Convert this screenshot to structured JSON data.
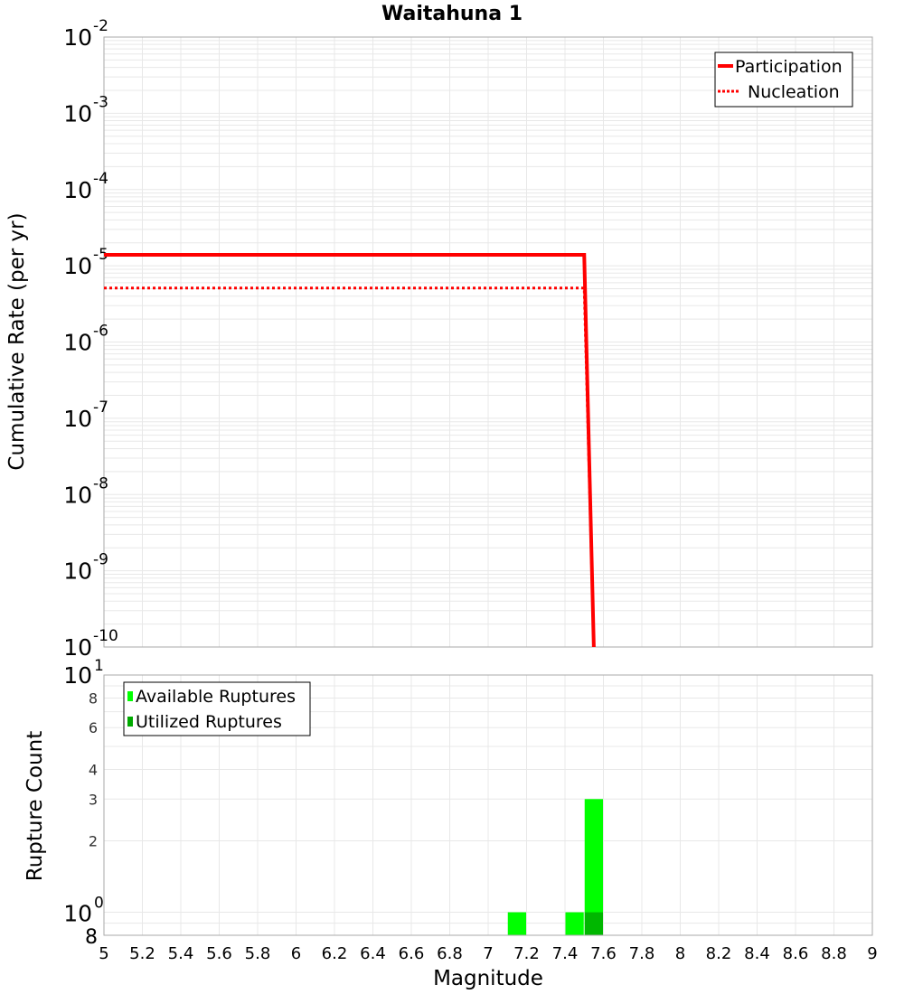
{
  "chart_data": [
    {
      "type": "line",
      "title": "Waitahuna 1",
      "xlabel": "Magnitude",
      "ylabel": "Cumulative Rate (per yr)",
      "yscale": "log",
      "xlim": [
        5,
        9
      ],
      "ylim": [
        1e-10,
        0.01
      ],
      "grid": true,
      "legend_position": "upper right",
      "y_tick_labels": [
        "10-2",
        "10-3",
        "10-4",
        "10-5",
        "10-6",
        "10-7",
        "10-8",
        "10-9",
        "10-10"
      ],
      "series": [
        {
          "name": "Participation",
          "style": "solid",
          "color": "#ff0000",
          "x": [
            5.0,
            7.5,
            7.55
          ],
          "y": [
            1.39e-05,
            1.39e-05,
            1e-10
          ]
        },
        {
          "name": "Nucleation",
          "style": "dotted",
          "color": "#ff0000",
          "x": [
            5.0,
            7.5,
            7.55
          ],
          "y": [
            5.1e-06,
            5.1e-06,
            1e-10
          ]
        }
      ]
    },
    {
      "type": "bar",
      "xlabel": "Magnitude",
      "ylabel": "Rupture Count",
      "yscale": "log",
      "xlim": [
        5,
        9
      ],
      "ylim": [
        0.8,
        10
      ],
      "grid": true,
      "legend_position": "upper left",
      "x_tick_labels": [
        "5",
        "5.2",
        "5.4",
        "5.6",
        "5.8",
        "6",
        "6.2",
        "6.4",
        "6.6",
        "6.8",
        "7",
        "7.2",
        "7.4",
        "7.6",
        "7.8",
        "8",
        "8.2",
        "8.4",
        "8.6",
        "8.8",
        "9"
      ],
      "y_tick_labels": [
        "8",
        "10^0",
        "2",
        "3",
        "4",
        "6",
        "8",
        "10^1"
      ],
      "bin_width": 0.1,
      "series": [
        {
          "name": "Available Ruptures",
          "color": "#00ff00",
          "bins": [
            {
              "x0": 7.1,
              "x1": 7.2,
              "count": 1
            },
            {
              "x0": 7.4,
              "x1": 7.5,
              "count": 1
            },
            {
              "x0": 7.5,
              "x1": 7.6,
              "count": 3
            }
          ]
        },
        {
          "name": "Utilized Ruptures",
          "color": "#00aa00",
          "bins": [
            {
              "x0": 7.5,
              "x1": 7.6,
              "count": 1
            }
          ]
        }
      ]
    }
  ],
  "labels": {
    "title": "Waitahuna 1",
    "top_ylabel": "Cumulative Rate (per yr)",
    "bottom_ylabel": "Rupture Count",
    "xlabel": "Magnitude",
    "legend_top": [
      "Participation",
      "Nucleation"
    ],
    "legend_bottom": [
      "Available Ruptures",
      "Utilized Ruptures"
    ]
  },
  "colors": {
    "rate_line": "#ff0000",
    "available": "#00ff00",
    "utilized": "#00aa00",
    "grid": "#e8e8e8",
    "axis": "#aaaaaa"
  }
}
